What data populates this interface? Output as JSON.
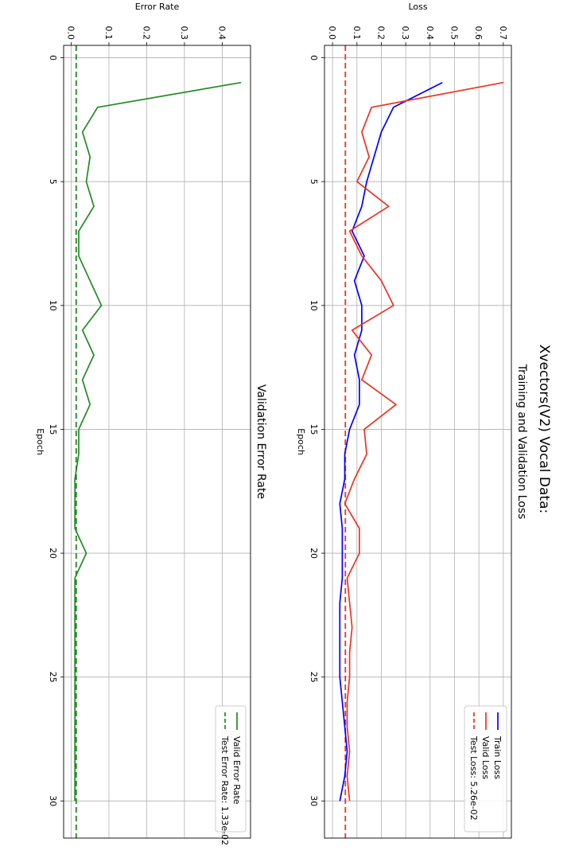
{
  "figure": {
    "suptitle": "Xvectors(V2) Vocal Data:"
  },
  "chart_data": [
    {
      "type": "line",
      "title": "Training and Validation Loss",
      "xlabel": "Epoch",
      "ylabel": "Loss",
      "xlim": [
        -0.5,
        31.5
      ],
      "ylim": [
        -0.033,
        0.733
      ],
      "xticks": [
        0,
        5,
        10,
        15,
        20,
        25,
        30
      ],
      "yticks": [
        0.0,
        0.1,
        0.2,
        0.3,
        0.4,
        0.5,
        0.6,
        0.7
      ],
      "grid": true,
      "legend_position": "top-right",
      "x": [
        1,
        2,
        3,
        4,
        5,
        6,
        7,
        8,
        9,
        10,
        11,
        12,
        13,
        14,
        15,
        16,
        17,
        18,
        19,
        20,
        21,
        22,
        23,
        24,
        25,
        26,
        27,
        28,
        29,
        30
      ],
      "series": [
        {
          "name": "Train Loss",
          "color": "#0000ff",
          "dashed": false,
          "values": [
            0.45,
            0.25,
            0.2,
            0.17,
            0.14,
            0.12,
            0.08,
            0.13,
            0.09,
            0.12,
            0.12,
            0.09,
            0.11,
            0.11,
            0.07,
            0.05,
            0.05,
            0.03,
            0.04,
            0.04,
            0.04,
            0.03,
            0.03,
            0.03,
            0.03,
            0.04,
            0.05,
            0.06,
            0.05,
            0.03
          ]
        },
        {
          "name": "Valid Loss",
          "color": "#ee3322",
          "dashed": false,
          "values": [
            0.7,
            0.16,
            0.12,
            0.15,
            0.1,
            0.23,
            0.07,
            0.12,
            0.2,
            0.25,
            0.08,
            0.16,
            0.12,
            0.26,
            0.13,
            0.14,
            0.09,
            0.05,
            0.11,
            0.11,
            0.06,
            0.07,
            0.08,
            0.07,
            0.07,
            0.06,
            0.06,
            0.07,
            0.06,
            0.07
          ]
        }
      ],
      "reference_lines": [
        {
          "name": "Test Loss: 5.26e-02",
          "value": 0.0526,
          "color": "#ee3322",
          "dashed": true
        }
      ]
    },
    {
      "type": "line",
      "title": "Validation Error Rate",
      "xlabel": "Epoch",
      "ylabel": "Error Rate",
      "xlim": [
        -0.5,
        31.5
      ],
      "ylim": [
        -0.02,
        0.475
      ],
      "xticks": [
        0,
        5,
        10,
        15,
        20,
        25,
        30
      ],
      "yticks": [
        0.0,
        0.1,
        0.2,
        0.3,
        0.4
      ],
      "grid": true,
      "legend_position": "top-right",
      "x": [
        1,
        2,
        3,
        4,
        5,
        6,
        7,
        8,
        9,
        10,
        11,
        12,
        13,
        14,
        15,
        16,
        17,
        18,
        19,
        20,
        21,
        22,
        23,
        24,
        25,
        26,
        27,
        28,
        29,
        30
      ],
      "series": [
        {
          "name": "Valid Error Rate",
          "color": "#228b22",
          "dashed": false,
          "values": [
            0.45,
            0.07,
            0.03,
            0.05,
            0.04,
            0.06,
            0.02,
            0.02,
            0.05,
            0.08,
            0.03,
            0.06,
            0.03,
            0.05,
            0.02,
            0.02,
            0.01,
            0.01,
            0.01,
            0.04,
            0.01,
            0.01,
            0.01,
            0.01,
            0.01,
            0.01,
            0.01,
            0.01,
            0.01,
            0.01
          ]
        }
      ],
      "reference_lines": [
        {
          "name": "Test Error Rate: 1.33e-02",
          "value": 0.0133,
          "color": "#228b22",
          "dashed": true
        }
      ]
    }
  ]
}
